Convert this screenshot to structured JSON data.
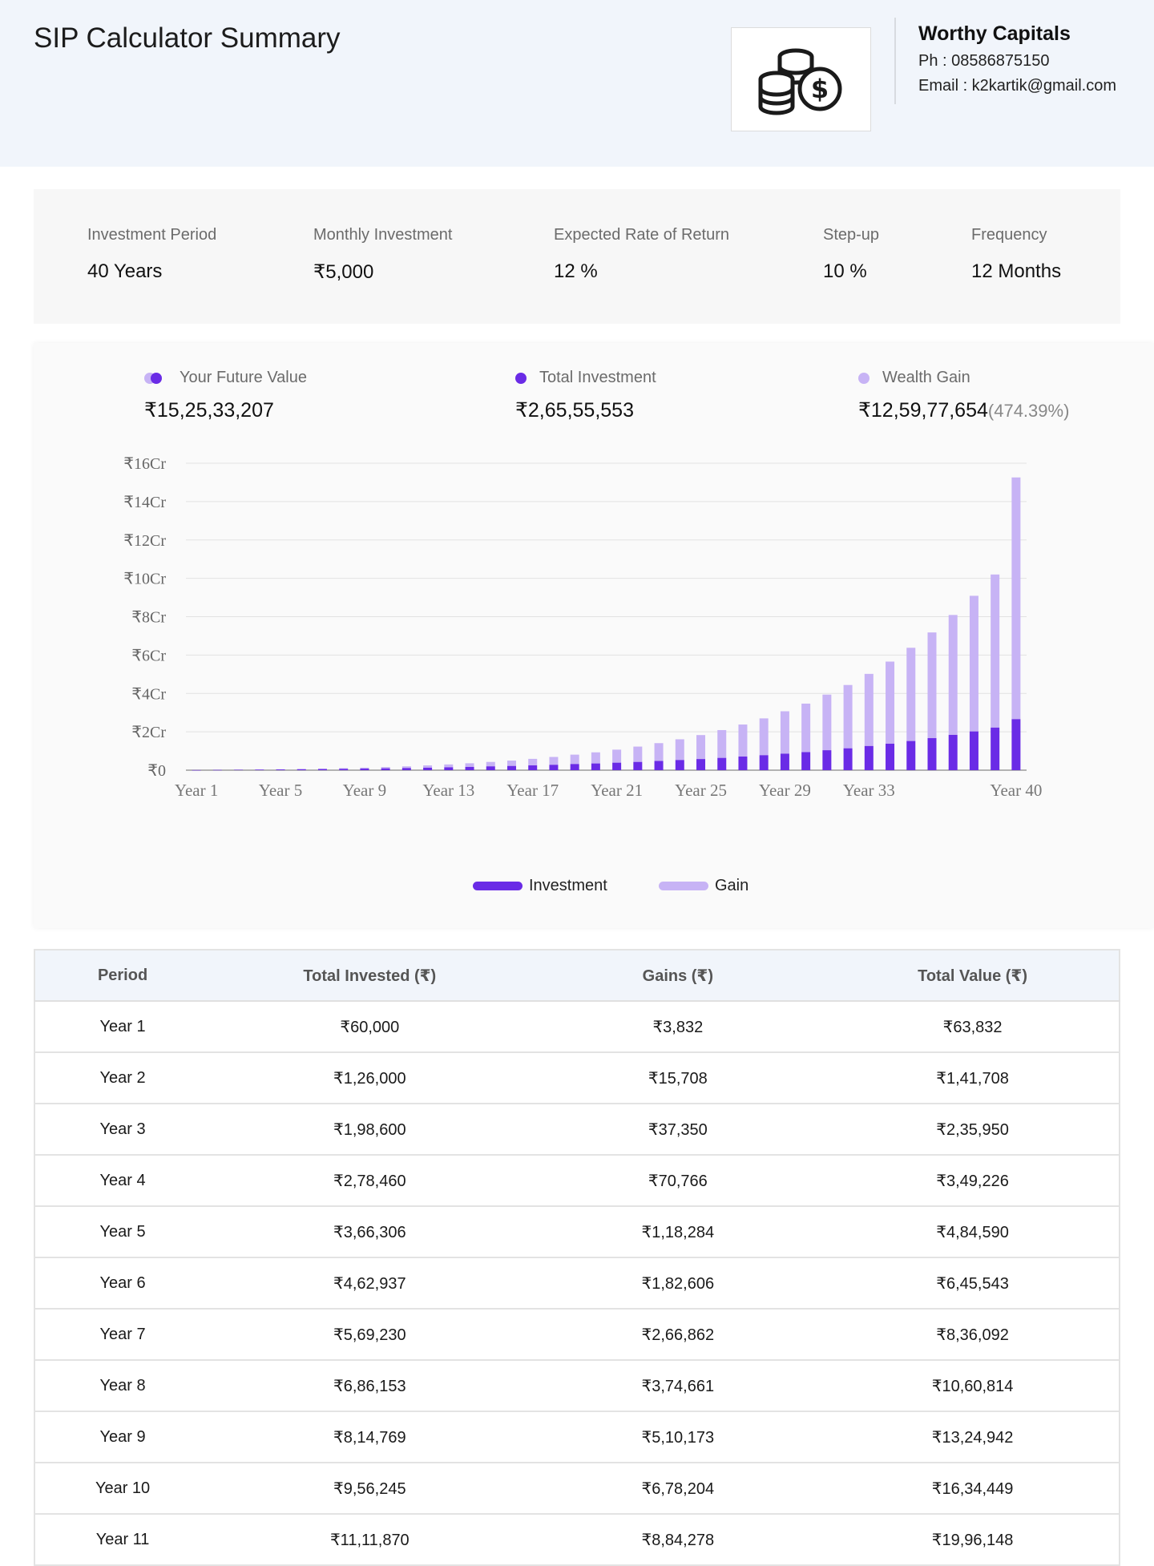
{
  "header": {
    "title": "SIP Calculator Summary",
    "company": {
      "name": "Worthy Capitals",
      "phone": "Ph : 08586875150",
      "email": "Email : k2kartik@gmail.com"
    }
  },
  "params": [
    {
      "label": "Investment Period",
      "value": "40 Years"
    },
    {
      "label": "Monthly Investment",
      "value": "₹5,000"
    },
    {
      "label": "Expected Rate of Return",
      "value": "12 %"
    },
    {
      "label": "Step-up",
      "value": "10 %"
    },
    {
      "label": "Frequency",
      "value": "12 Months"
    }
  ],
  "summary": {
    "future_value": {
      "label": "Your Future Value",
      "value": "₹15,25,33,207"
    },
    "total_investment": {
      "label": "Total Investment",
      "value": "₹2,65,55,553"
    },
    "wealth_gain": {
      "label": "Wealth Gain",
      "value": "₹12,59,77,654",
      "pct": "(474.39%)"
    }
  },
  "colors": {
    "investment": "#6a2be6",
    "gain": "#c7b3f5",
    "header_bg": "#f1f5fb"
  },
  "chart_data": {
    "type": "bar",
    "stacked": true,
    "categories": [
      "Year 1",
      "Year 2",
      "Year 3",
      "Year 4",
      "Year 5",
      "Year 6",
      "Year 7",
      "Year 8",
      "Year 9",
      "Year 10",
      "Year 11",
      "Year 12",
      "Year 13",
      "Year 14",
      "Year 15",
      "Year 16",
      "Year 17",
      "Year 18",
      "Year 19",
      "Year 20",
      "Year 21",
      "Year 22",
      "Year 23",
      "Year 24",
      "Year 25",
      "Year 26",
      "Year 27",
      "Year 28",
      "Year 29",
      "Year 30",
      "Year 31",
      "Year 32",
      "Year 33",
      "Year 34",
      "Year 35",
      "Year 36",
      "Year 37",
      "Year 38",
      "Year 39",
      "Year 40"
    ],
    "x_tick_labels": [
      "Year 1",
      "Year 5",
      "Year 9",
      "Year 13",
      "Year 17",
      "Year 21",
      "Year 25",
      "Year 29",
      "Year 33",
      "Year 40"
    ],
    "y_tick_labels": [
      "₹0",
      "₹2Cr",
      "₹4Cr",
      "₹6Cr",
      "₹8Cr",
      "₹10Cr",
      "₹12Cr",
      "₹14Cr",
      "₹16Cr"
    ],
    "ylim": [
      0,
      16
    ],
    "y_unit": "Cr",
    "series": [
      {
        "name": "Investment",
        "values": [
          0.006,
          0.0126,
          0.0199,
          0.0278,
          0.0366,
          0.0463,
          0.0569,
          0.0686,
          0.0815,
          0.0956,
          0.1112,
          0.13,
          0.15,
          0.17,
          0.2,
          0.22,
          0.25,
          0.28,
          0.32,
          0.35,
          0.39,
          0.43,
          0.48,
          0.53,
          0.58,
          0.64,
          0.71,
          0.78,
          0.86,
          0.94,
          1.04,
          1.14,
          1.26,
          1.38,
          1.52,
          1.67,
          1.84,
          2.02,
          2.22,
          2.66
        ]
      },
      {
        "name": "Gain",
        "values": [
          0.0004,
          0.0016,
          0.0037,
          0.0071,
          0.0118,
          0.0183,
          0.0267,
          0.0375,
          0.051,
          0.0678,
          0.0884,
          0.12,
          0.15,
          0.19,
          0.23,
          0.28,
          0.34,
          0.41,
          0.49,
          0.58,
          0.68,
          0.8,
          0.93,
          1.08,
          1.25,
          1.45,
          1.67,
          1.92,
          2.21,
          2.53,
          2.9,
          3.3,
          3.76,
          4.28,
          4.86,
          5.51,
          6.25,
          7.07,
          7.98,
          12.6
        ]
      }
    ],
    "legend": [
      "Investment",
      "Gain"
    ],
    "legend_position": "bottom",
    "grid": true
  },
  "table": {
    "headers": [
      "Period",
      "Total Invested (₹)",
      "Gains (₹)",
      "Total Value (₹)"
    ],
    "rows": [
      [
        "Year 1",
        "₹60,000",
        "₹3,832",
        "₹63,832"
      ],
      [
        "Year 2",
        "₹1,26,000",
        "₹15,708",
        "₹1,41,708"
      ],
      [
        "Year 3",
        "₹1,98,600",
        "₹37,350",
        "₹2,35,950"
      ],
      [
        "Year 4",
        "₹2,78,460",
        "₹70,766",
        "₹3,49,226"
      ],
      [
        "Year 5",
        "₹3,66,306",
        "₹1,18,284",
        "₹4,84,590"
      ],
      [
        "Year 6",
        "₹4,62,937",
        "₹1,82,606",
        "₹6,45,543"
      ],
      [
        "Year 7",
        "₹5,69,230",
        "₹2,66,862",
        "₹8,36,092"
      ],
      [
        "Year 8",
        "₹6,86,153",
        "₹3,74,661",
        "₹10,60,814"
      ],
      [
        "Year 9",
        "₹8,14,769",
        "₹5,10,173",
        "₹13,24,942"
      ],
      [
        "Year 10",
        "₹9,56,245",
        "₹6,78,204",
        "₹16,34,449"
      ],
      [
        "Year 11",
        "₹11,11,870",
        "₹8,84,278",
        "₹19,96,148"
      ]
    ]
  }
}
